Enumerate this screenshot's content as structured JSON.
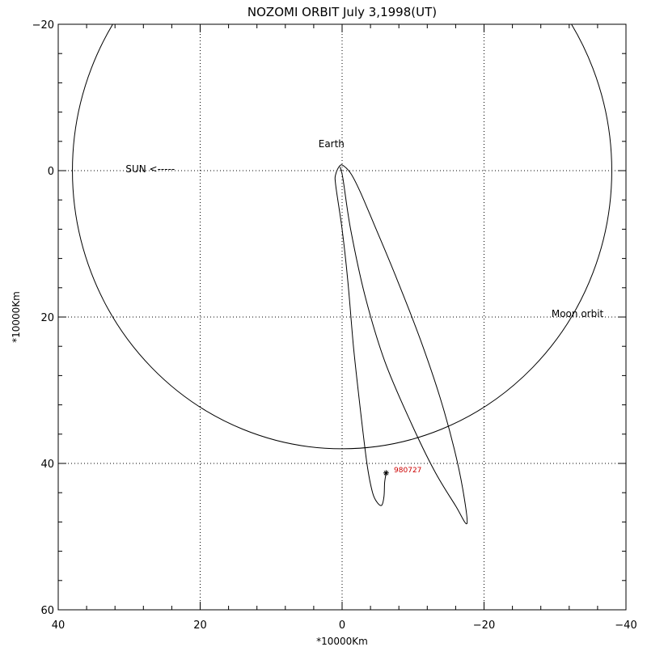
{
  "chart_data": {
    "type": "line",
    "title": "NOZOMI ORBIT July 3,1998(UT)",
    "xlabel": "*10000Km",
    "ylabel": "*10000Km",
    "xlim": [
      40,
      -40
    ],
    "ylim": [
      -20,
      60
    ],
    "x_ticks": [
      40,
      20,
      0,
      -20,
      -40
    ],
    "y_ticks": [
      -20,
      0,
      20,
      40,
      60
    ],
    "x_tick_labels": [
      "40",
      "20",
      "0",
      "−20",
      "−40"
    ],
    "y_tick_labels": [
      "−20",
      "0",
      "20",
      "40",
      "60"
    ],
    "grid": "dotted",
    "moon_orbit_radius": 38,
    "annotations": {
      "earth": {
        "text": "Earth",
        "x": 1.5,
        "y": -3.2,
        "color": "#22dd22"
      },
      "sun": {
        "text": "SUN <-----",
        "x": 30.5,
        "y": 0.2,
        "color": "#cc2222"
      },
      "moon": {
        "text": "Moon orbit",
        "x": -29.5,
        "y": 20.0,
        "color": "#cc4422"
      },
      "date": {
        "text": "980727",
        "x": -7.3,
        "y": 41.2,
        "color": "#cc0000"
      }
    },
    "end_marker": {
      "x": -6.2,
      "y": 41.3
    },
    "series": [
      {
        "values": [
          [
            -6.2,
            41.3
          ],
          [
            -6.0,
            42.6
          ],
          [
            -5.9,
            44.5
          ],
          [
            -5.6,
            45.7
          ],
          [
            -5.0,
            45.4
          ],
          [
            -4.3,
            44.0
          ],
          [
            -3.5,
            40.0
          ],
          [
            -2.5,
            32.0
          ],
          [
            -1.6,
            24.0
          ],
          [
            -0.8,
            15.0
          ],
          [
            0.0,
            8.0
          ],
          [
            0.9,
            2.0
          ],
          [
            0.9,
            0.5
          ],
          [
            0.3,
            -0.7
          ],
          [
            -0.3,
            -0.6
          ],
          [
            -1.3,
            0.5
          ],
          [
            -2.6,
            3.0
          ],
          [
            -4.8,
            8.0
          ],
          [
            -7.8,
            15.0
          ],
          [
            -11.0,
            23.0
          ],
          [
            -13.8,
            31.0
          ],
          [
            -15.8,
            38.0
          ],
          [
            -17.0,
            43.5
          ],
          [
            -17.6,
            48.2
          ],
          [
            -16.0,
            45.8
          ],
          [
            -13.0,
            41.0
          ],
          [
            -9.5,
            34.0
          ],
          [
            -6.0,
            26.0
          ],
          [
            -3.2,
            17.0
          ],
          [
            -1.2,
            8.0
          ],
          [
            -0.1,
            1.0
          ],
          [
            0.3,
            -0.5
          ]
        ]
      }
    ]
  }
}
